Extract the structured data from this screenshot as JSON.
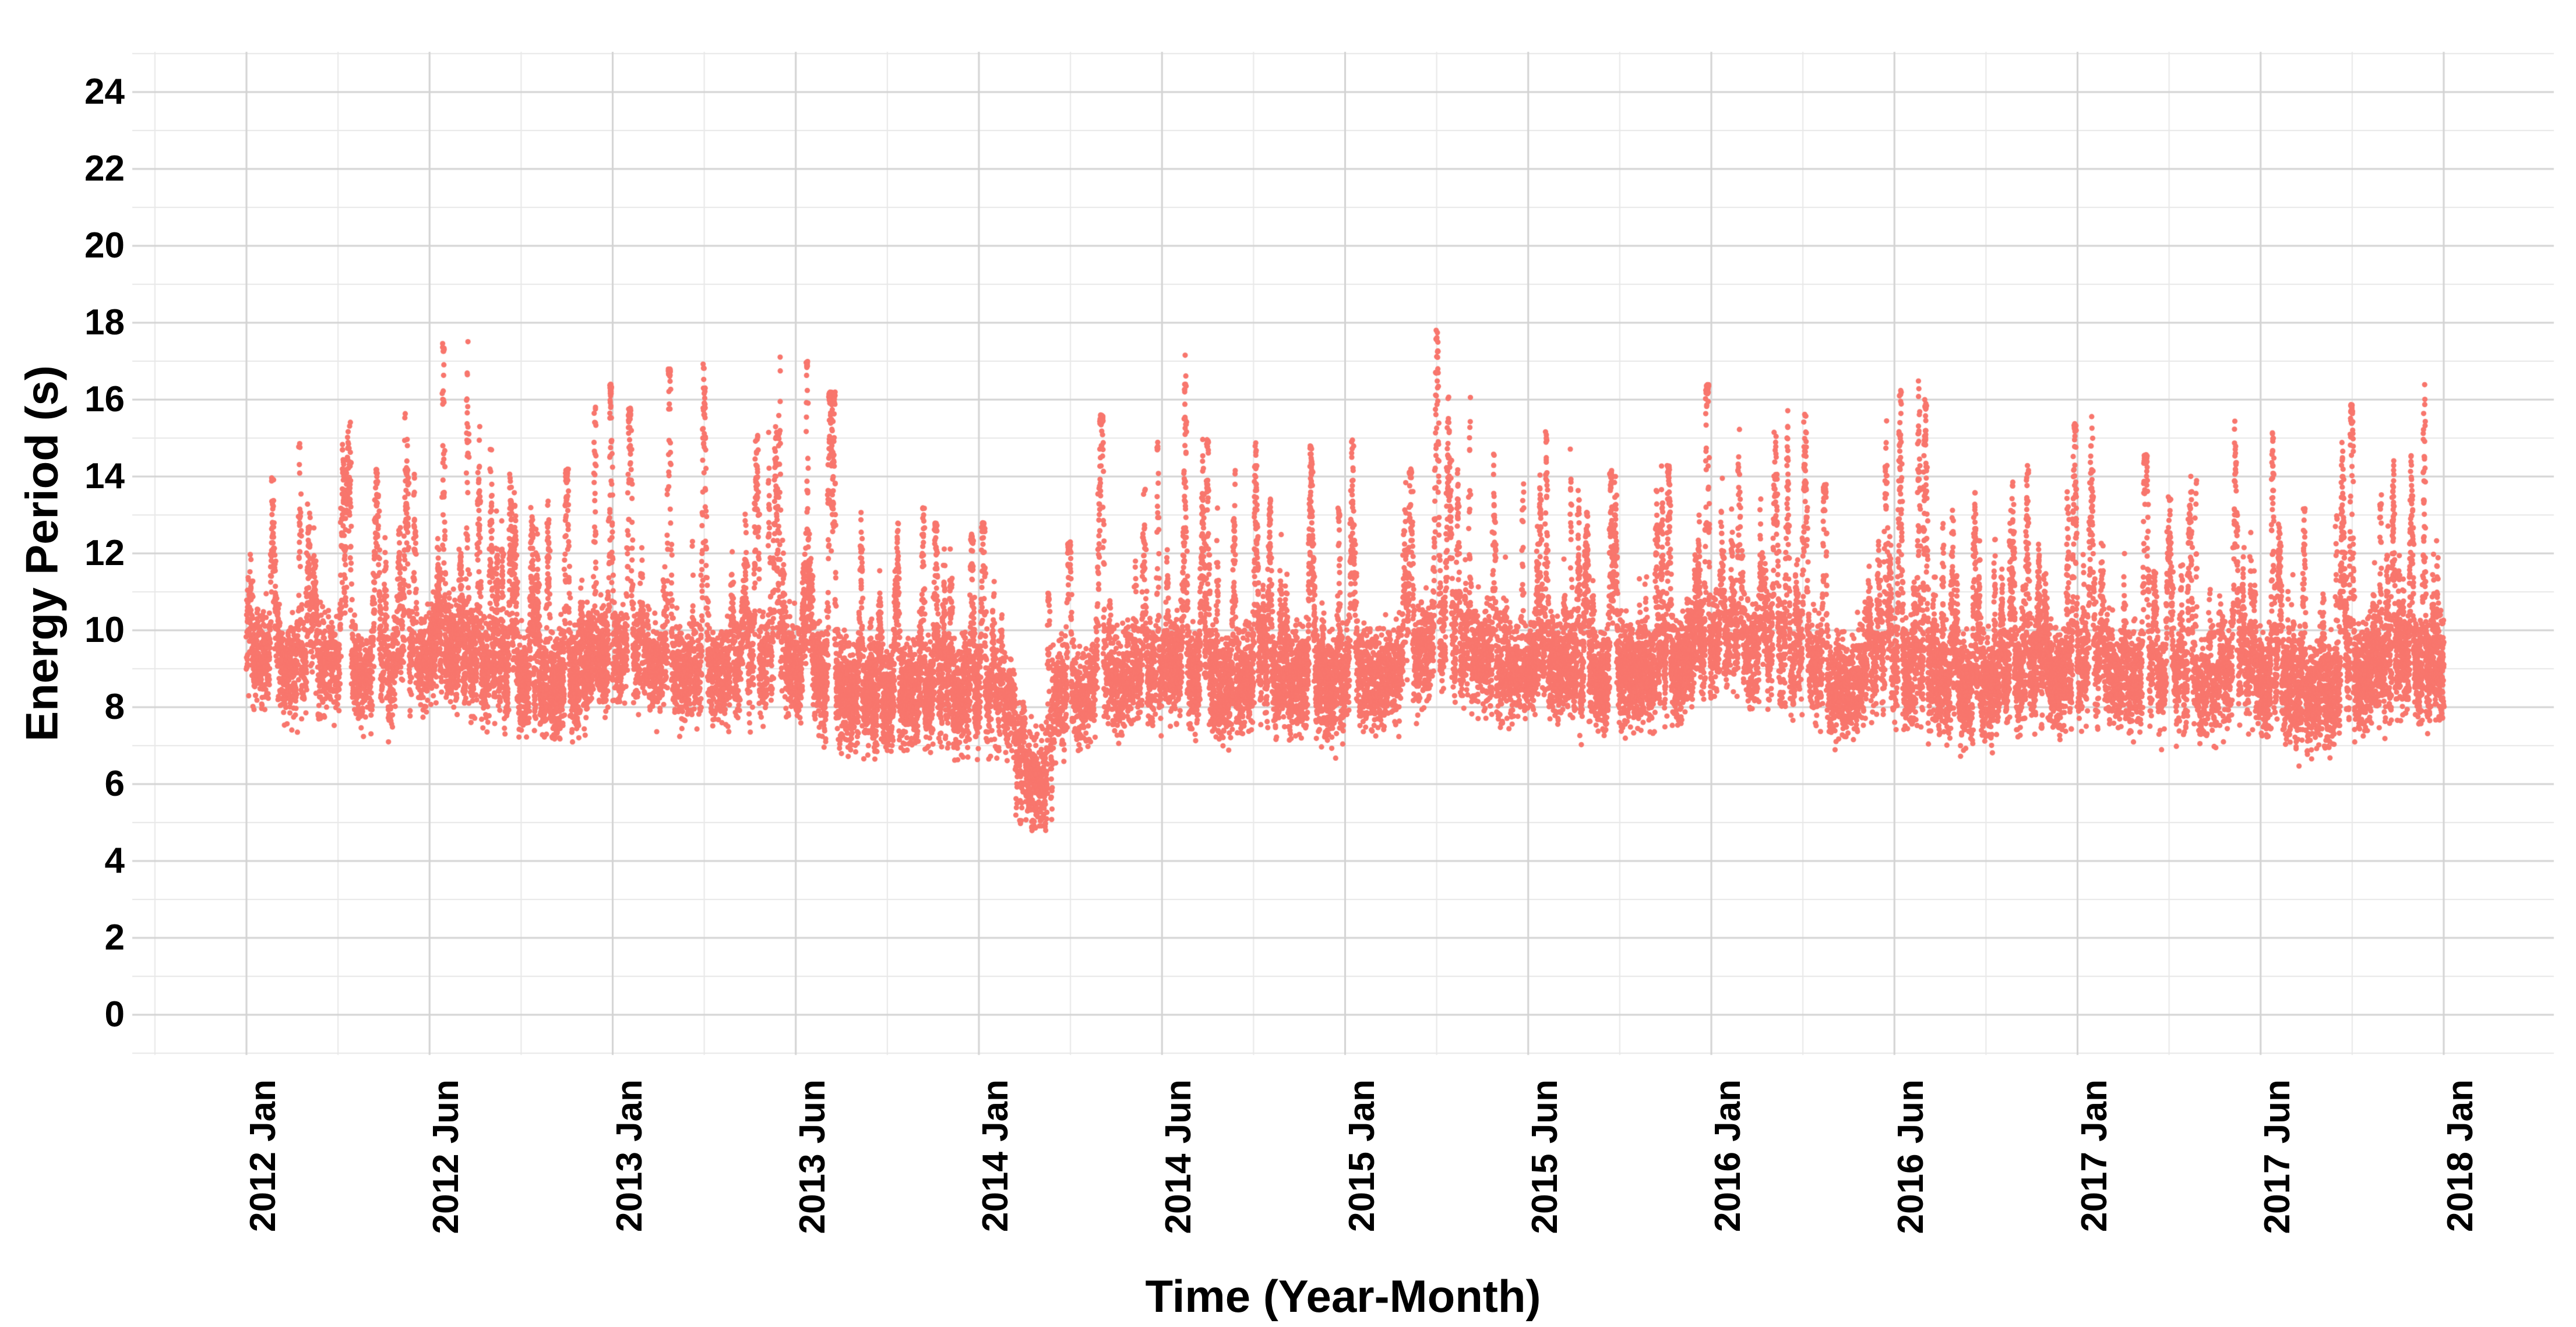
{
  "page": {
    "background": "#FFFFFF"
  },
  "x_axis": {
    "title": "Time (Year-Month)"
  },
  "y_axis": {
    "title": "Energy Period (s)"
  },
  "chart_data": {
    "type": "scatter",
    "title": "",
    "xlabel": "Time (Year-Month)",
    "ylabel": "Energy Period (s)",
    "point_color": "#F8766D",
    "text_color": "#000000",
    "grid": {
      "major_color": "#D3D3D3",
      "minor_color": "#E8E8E8",
      "show_minor": true,
      "background": "#FFFFFF"
    },
    "x_ticks": [
      "2012 Jan",
      "2012 Jun",
      "2013 Jan",
      "2013 Jun",
      "2014 Jan",
      "2014 Jun",
      "2015 Jan",
      "2015 Jun",
      "2016 Jan",
      "2016 Jun",
      "2017 Jan",
      "2017 Jun",
      "2018 Jan"
    ],
    "y_ticks": [
      0,
      2,
      4,
      6,
      8,
      10,
      12,
      14,
      16,
      18,
      20,
      22,
      24
    ],
    "ylim": [
      0,
      24
    ],
    "x_range": [
      "2012-01",
      "2017-12"
    ],
    "legend_position": "none",
    "observed_max": {
      "value": 18.4,
      "ym": "2015-03"
    },
    "observed_min": {
      "value": 4.5,
      "ym": "2014-02"
    },
    "anomaly_note": "dense low cluster ~4.5-7.4 s in Feb 2014; data floor ~6-7 s elsewhere; final streak dips to ~6.2 s at Dec 2017",
    "monthly_envelope": [
      {
        "ym": "2012-01",
        "min": 6.4,
        "mean": 9.8,
        "max": 14.0
      },
      {
        "ym": "2012-02",
        "min": 6.4,
        "mean": 9.4,
        "max": 15.3
      },
      {
        "ym": "2012-03",
        "min": 6.6,
        "mean": 9.6,
        "max": 15.5
      },
      {
        "ym": "2012-04",
        "min": 6.8,
        "mean": 9.2,
        "max": 14.3
      },
      {
        "ym": "2012-05",
        "min": 7.0,
        "mean": 9.7,
        "max": 15.8
      },
      {
        "ym": "2012-06",
        "min": 7.0,
        "mean": 10.0,
        "max": 17.5
      },
      {
        "ym": "2012-07",
        "min": 6.8,
        "mean": 9.7,
        "max": 18.3
      },
      {
        "ym": "2012-08",
        "min": 7.0,
        "mean": 9.3,
        "max": 14.8
      },
      {
        "ym": "2012-09",
        "min": 6.8,
        "mean": 9.0,
        "max": 14.2
      },
      {
        "ym": "2012-10",
        "min": 6.9,
        "mean": 8.9,
        "max": 13.6
      },
      {
        "ym": "2012-11",
        "min": 6.8,
        "mean": 9.2,
        "max": 14.2
      },
      {
        "ym": "2012-12",
        "min": 7.0,
        "mean": 9.8,
        "max": 16.4
      },
      {
        "ym": "2013-01",
        "min": 6.9,
        "mean": 9.8,
        "max": 15.8
      },
      {
        "ym": "2013-02",
        "min": 6.7,
        "mean": 9.4,
        "max": 16.8
      },
      {
        "ym": "2013-03",
        "min": 6.5,
        "mean": 9.3,
        "max": 17.0
      },
      {
        "ym": "2013-04",
        "min": 6.7,
        "mean": 9.4,
        "max": 15.2
      },
      {
        "ym": "2013-05",
        "min": 6.5,
        "mean": 9.6,
        "max": 17.2
      },
      {
        "ym": "2013-06",
        "min": 6.5,
        "mean": 9.4,
        "max": 17.0
      },
      {
        "ym": "2013-07",
        "min": 6.3,
        "mean": 8.9,
        "max": 16.2
      },
      {
        "ym": "2013-08",
        "min": 6.4,
        "mean": 8.7,
        "max": 13.2
      },
      {
        "ym": "2013-09",
        "min": 6.2,
        "mean": 8.6,
        "max": 12.8
      },
      {
        "ym": "2013-10",
        "min": 6.4,
        "mean": 8.8,
        "max": 13.2
      },
      {
        "ym": "2013-11",
        "min": 6.3,
        "mean": 8.8,
        "max": 12.8
      },
      {
        "ym": "2013-12",
        "min": 6.0,
        "mean": 8.7,
        "max": 12.5
      },
      {
        "ym": "2014-01",
        "min": 5.8,
        "mean": 8.6,
        "max": 12.8
      },
      {
        "ym": "2014-02",
        "min": 4.5,
        "mean": 6.6,
        "max": 11.0
      },
      {
        "ym": "2014-03",
        "min": 5.9,
        "mean": 8.7,
        "max": 12.3
      },
      {
        "ym": "2014-04",
        "min": 6.4,
        "mean": 9.1,
        "max": 15.6
      },
      {
        "ym": "2014-05",
        "min": 6.5,
        "mean": 9.3,
        "max": 15.8
      },
      {
        "ym": "2014-06",
        "min": 6.7,
        "mean": 9.6,
        "max": 17.4
      },
      {
        "ym": "2014-07",
        "min": 6.5,
        "mean": 9.2,
        "max": 15.0
      },
      {
        "ym": "2014-08",
        "min": 6.3,
        "mean": 9.0,
        "max": 14.2
      },
      {
        "ym": "2014-09",
        "min": 6.4,
        "mean": 9.2,
        "max": 15.0
      },
      {
        "ym": "2014-10",
        "min": 6.3,
        "mean": 9.0,
        "max": 13.6
      },
      {
        "ym": "2014-11",
        "min": 6.4,
        "mean": 9.3,
        "max": 14.8
      },
      {
        "ym": "2014-12",
        "min": 6.3,
        "mean": 8.9,
        "max": 13.2
      },
      {
        "ym": "2015-01",
        "min": 6.5,
        "mean": 9.3,
        "max": 15.0
      },
      {
        "ym": "2015-02",
        "min": 6.5,
        "mean": 9.4,
        "max": 14.2
      },
      {
        "ym": "2015-03",
        "min": 6.8,
        "mean": 10.0,
        "max": 18.4
      },
      {
        "ym": "2015-04",
        "min": 6.8,
        "mean": 9.8,
        "max": 16.6
      },
      {
        "ym": "2015-05",
        "min": 6.5,
        "mean": 9.4,
        "max": 14.6
      },
      {
        "ym": "2015-06",
        "min": 6.7,
        "mean": 9.6,
        "max": 15.2
      },
      {
        "ym": "2015-07",
        "min": 6.5,
        "mean": 9.5,
        "max": 14.9
      },
      {
        "ym": "2015-08",
        "min": 6.3,
        "mean": 9.0,
        "max": 13.2
      },
      {
        "ym": "2015-09",
        "min": 6.5,
        "mean": 9.4,
        "max": 14.2
      },
      {
        "ym": "2015-10",
        "min": 6.3,
        "mean": 9.2,
        "max": 13.9
      },
      {
        "ym": "2015-11",
        "min": 6.5,
        "mean": 9.4,
        "max": 14.3
      },
      {
        "ym": "2015-12",
        "min": 6.8,
        "mean": 9.9,
        "max": 16.4
      },
      {
        "ym": "2016-01",
        "min": 7.0,
        "mean": 10.2,
        "max": 15.5
      },
      {
        "ym": "2016-02",
        "min": 6.8,
        "mean": 9.8,
        "max": 15.2
      },
      {
        "ym": "2016-03",
        "min": 6.5,
        "mean": 9.5,
        "max": 16.6
      },
      {
        "ym": "2016-04",
        "min": 6.3,
        "mean": 9.0,
        "max": 13.8
      },
      {
        "ym": "2016-05",
        "min": 6.5,
        "mean": 9.4,
        "max": 16.2
      },
      {
        "ym": "2016-06",
        "min": 6.5,
        "mean": 9.3,
        "max": 16.5
      },
      {
        "ym": "2016-07",
        "min": 6.3,
        "mean": 9.2,
        "max": 16.0
      },
      {
        "ym": "2016-08",
        "min": 6.0,
        "mean": 8.8,
        "max": 13.6
      },
      {
        "ym": "2016-09",
        "min": 6.2,
        "mean": 9.0,
        "max": 14.1
      },
      {
        "ym": "2016-10",
        "min": 6.3,
        "mean": 9.2,
        "max": 13.9
      },
      {
        "ym": "2016-11",
        "min": 6.5,
        "mean": 9.4,
        "max": 14.3
      },
      {
        "ym": "2016-12",
        "min": 6.3,
        "mean": 9.2,
        "max": 15.4
      },
      {
        "ym": "2017-01",
        "min": 6.5,
        "mean": 9.4,
        "max": 15.6
      },
      {
        "ym": "2017-02",
        "min": 6.3,
        "mean": 9.2,
        "max": 14.6
      },
      {
        "ym": "2017-03",
        "min": 6.5,
        "mean": 9.0,
        "max": 13.6
      },
      {
        "ym": "2017-04",
        "min": 6.3,
        "mean": 9.0,
        "max": 14.1
      },
      {
        "ym": "2017-05",
        "min": 6.5,
        "mean": 9.2,
        "max": 15.6
      },
      {
        "ym": "2017-06",
        "min": 6.3,
        "mean": 9.0,
        "max": 15.5
      },
      {
        "ym": "2017-07",
        "min": 6.0,
        "mean": 8.6,
        "max": 13.6
      },
      {
        "ym": "2017-08",
        "min": 6.2,
        "mean": 8.8,
        "max": 14.1
      },
      {
        "ym": "2017-09",
        "min": 6.3,
        "mean": 9.2,
        "max": 15.9
      },
      {
        "ym": "2017-10",
        "min": 6.5,
        "mean": 9.4,
        "max": 14.6
      },
      {
        "ym": "2017-11",
        "min": 6.5,
        "mean": 9.6,
        "max": 15.1
      },
      {
        "ym": "2017-12",
        "min": 6.0,
        "mean": 9.4,
        "max": 16.4
      }
    ]
  }
}
